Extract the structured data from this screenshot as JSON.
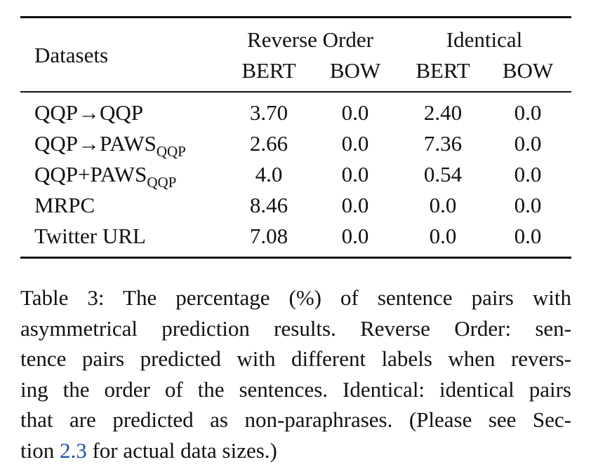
{
  "table": {
    "header": {
      "datasets": "Datasets",
      "group1": "Reverse Order",
      "group2": "Identical",
      "sub_bert": "BERT",
      "sub_bow": "BOW"
    },
    "rows": [
      {
        "label": "QQP→QQP",
        "label_sub": "",
        "values": [
          "3.70",
          "0.0",
          "2.40",
          "0.0"
        ]
      },
      {
        "label": "QQP→PAWS",
        "label_sub": "QQP",
        "values": [
          "2.66",
          "0.0",
          "7.36",
          "0.0"
        ]
      },
      {
        "label": "QQP+PAWS",
        "label_sub": "QQP",
        "values": [
          "4.0",
          "0.0",
          "0.54",
          "0.0"
        ]
      },
      {
        "label": "MRPC",
        "label_sub": "",
        "values": [
          "8.46",
          "0.0",
          "0.0",
          "0.0"
        ]
      },
      {
        "label": "Twitter URL",
        "label_sub": "",
        "values": [
          "7.08",
          "0.0",
          "0.0",
          "0.0"
        ]
      }
    ]
  },
  "caption": {
    "lines": [
      "Table 3:  The percentage (%) of sentence pairs with",
      "asymmetrical prediction results.  Reverse Order:  sen-",
      "tence pairs predicted with different labels when revers-",
      "ing the order of the sentences. Identical: identical pairs",
      "that are predicted as non-paraphrases. (Please see Sec-"
    ],
    "last_before": "tion ",
    "last_ref": "2.3",
    "last_after": " for actual data sizes.)"
  }
}
